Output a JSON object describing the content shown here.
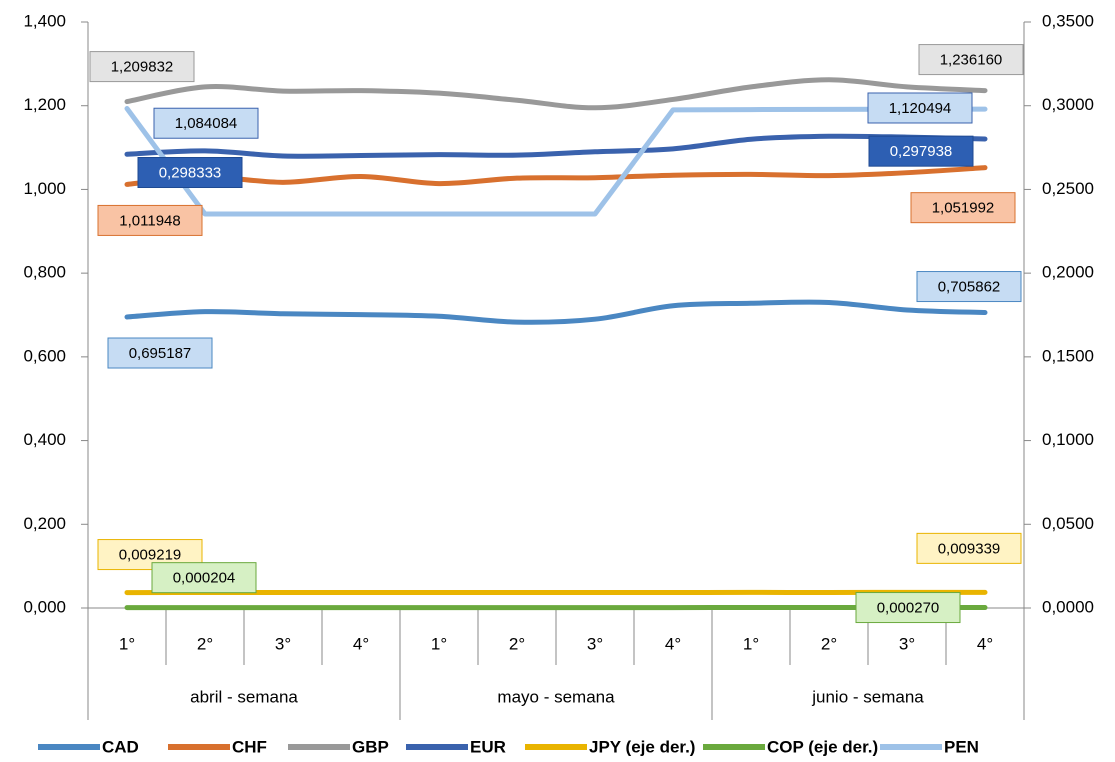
{
  "chart_data": {
    "type": "line",
    "categories": [
      "1°",
      "2°",
      "3°",
      "4°",
      "1°",
      "2°",
      "3°",
      "4°",
      "1°",
      "2°",
      "3°",
      "4°"
    ],
    "category_groups": [
      "abril - semana",
      "mayo - semana",
      "junio - semana"
    ],
    "ylim": [
      0,
      1.4
    ],
    "yticks": [
      {
        "value": 0,
        "label": "0,000"
      },
      {
        "value": 0.2,
        "label": "0,200"
      },
      {
        "value": 0.4,
        "label": "0,400"
      },
      {
        "value": 0.6,
        "label": "0,600"
      },
      {
        "value": 0.8,
        "label": "0,800"
      },
      {
        "value": 1.0,
        "label": "1,000"
      },
      {
        "value": 1.2,
        "label": "1,200"
      },
      {
        "value": 1.4,
        "label": "1,400"
      }
    ],
    "y2lim": [
      0,
      0.35
    ],
    "y2ticks": [
      {
        "value": 0,
        "label": "0,0000"
      },
      {
        "value": 0.05,
        "label": "0,0500"
      },
      {
        "value": 0.1,
        "label": "0,1000"
      },
      {
        "value": 0.15,
        "label": "0,1500"
      },
      {
        "value": 0.2,
        "label": "0,2000"
      },
      {
        "value": 0.25,
        "label": "0,2500"
      },
      {
        "value": 0.3,
        "label": "0,3000"
      },
      {
        "value": 0.35,
        "label": "0,3500"
      }
    ],
    "legend": "bottom",
    "series": [
      {
        "name": "CAD",
        "color": "#4a87c2",
        "smooth": true,
        "values": [
          0.695187,
          0.708,
          0.703,
          0.701,
          0.697,
          0.683,
          0.69,
          0.722,
          0.728,
          0.73,
          0.712,
          0.705862
        ],
        "value_labels": [
          "0,695187",
          null,
          null,
          null,
          null,
          null,
          null,
          null,
          null,
          null,
          null,
          "0,705862"
        ]
      },
      {
        "name": "CHF",
        "color": "#d8702e",
        "smooth": true,
        "values": [
          1.011948,
          1.03,
          1.017,
          1.031,
          1.014,
          1.027,
          1.028,
          1.034,
          1.036,
          1.033,
          1.04,
          1.051992
        ],
        "value_labels": [
          "1,011948",
          null,
          null,
          null,
          null,
          null,
          null,
          null,
          null,
          null,
          null,
          "1,051992"
        ]
      },
      {
        "name": "GBP",
        "color": "#999999",
        "smooth": true,
        "values": [
          1.209832,
          1.245,
          1.235,
          1.236,
          1.23,
          1.213,
          1.195,
          1.215,
          1.245,
          1.262,
          1.245,
          1.23616
        ],
        "value_labels": [
          "1,209832",
          null,
          null,
          null,
          null,
          null,
          null,
          null,
          null,
          null,
          null,
          "1,236160"
        ]
      },
      {
        "name": "EUR",
        "color": "#3a62ad",
        "smooth": true,
        "values": [
          1.084084,
          1.092,
          1.08,
          1.081,
          1.083,
          1.082,
          1.09,
          1.097,
          1.12,
          1.127,
          1.125,
          1.120494
        ],
        "value_labels": [
          "1,084084",
          null,
          null,
          null,
          null,
          null,
          null,
          null,
          null,
          null,
          null,
          "1,120494"
        ]
      },
      {
        "name": "JPY (eje der.)",
        "color": "#e9b400",
        "smooth": true,
        "axis": "y2",
        "values": [
          0.009219,
          0.00925,
          0.00926,
          0.00925,
          0.00924,
          0.00925,
          0.00927,
          0.00928,
          0.0093,
          0.00929,
          0.00932,
          0.009339
        ],
        "value_labels": [
          "0,009219",
          null,
          null,
          null,
          null,
          null,
          null,
          null,
          null,
          null,
          null,
          "0,009339"
        ]
      },
      {
        "name": "COP (eje der.)",
        "color": "#6aa93d",
        "smooth": true,
        "axis": "y2",
        "values": [
          0.000204,
          0.00021,
          0.00022,
          0.00023,
          0.00024,
          0.00025,
          0.00026,
          0.00026,
          0.00027,
          0.00027,
          0.00027,
          0.00027
        ],
        "value_labels": [
          "0,000204",
          null,
          null,
          null,
          null,
          null,
          null,
          null,
          null,
          null,
          null,
          "0,000270"
        ]
      },
      {
        "name": "PEN",
        "color": "#9ec2e8",
        "smooth": false,
        "axis": "y2",
        "values": [
          0.298333,
          0.2353,
          0.2353,
          0.2353,
          0.2353,
          0.2353,
          0.2353,
          0.2975,
          0.2977,
          0.2978,
          0.2979,
          0.297938
        ],
        "value_labels": [
          "0,298333",
          null,
          null,
          null,
          null,
          null,
          null,
          null,
          null,
          null,
          null,
          "0,297938"
        ]
      }
    ]
  }
}
